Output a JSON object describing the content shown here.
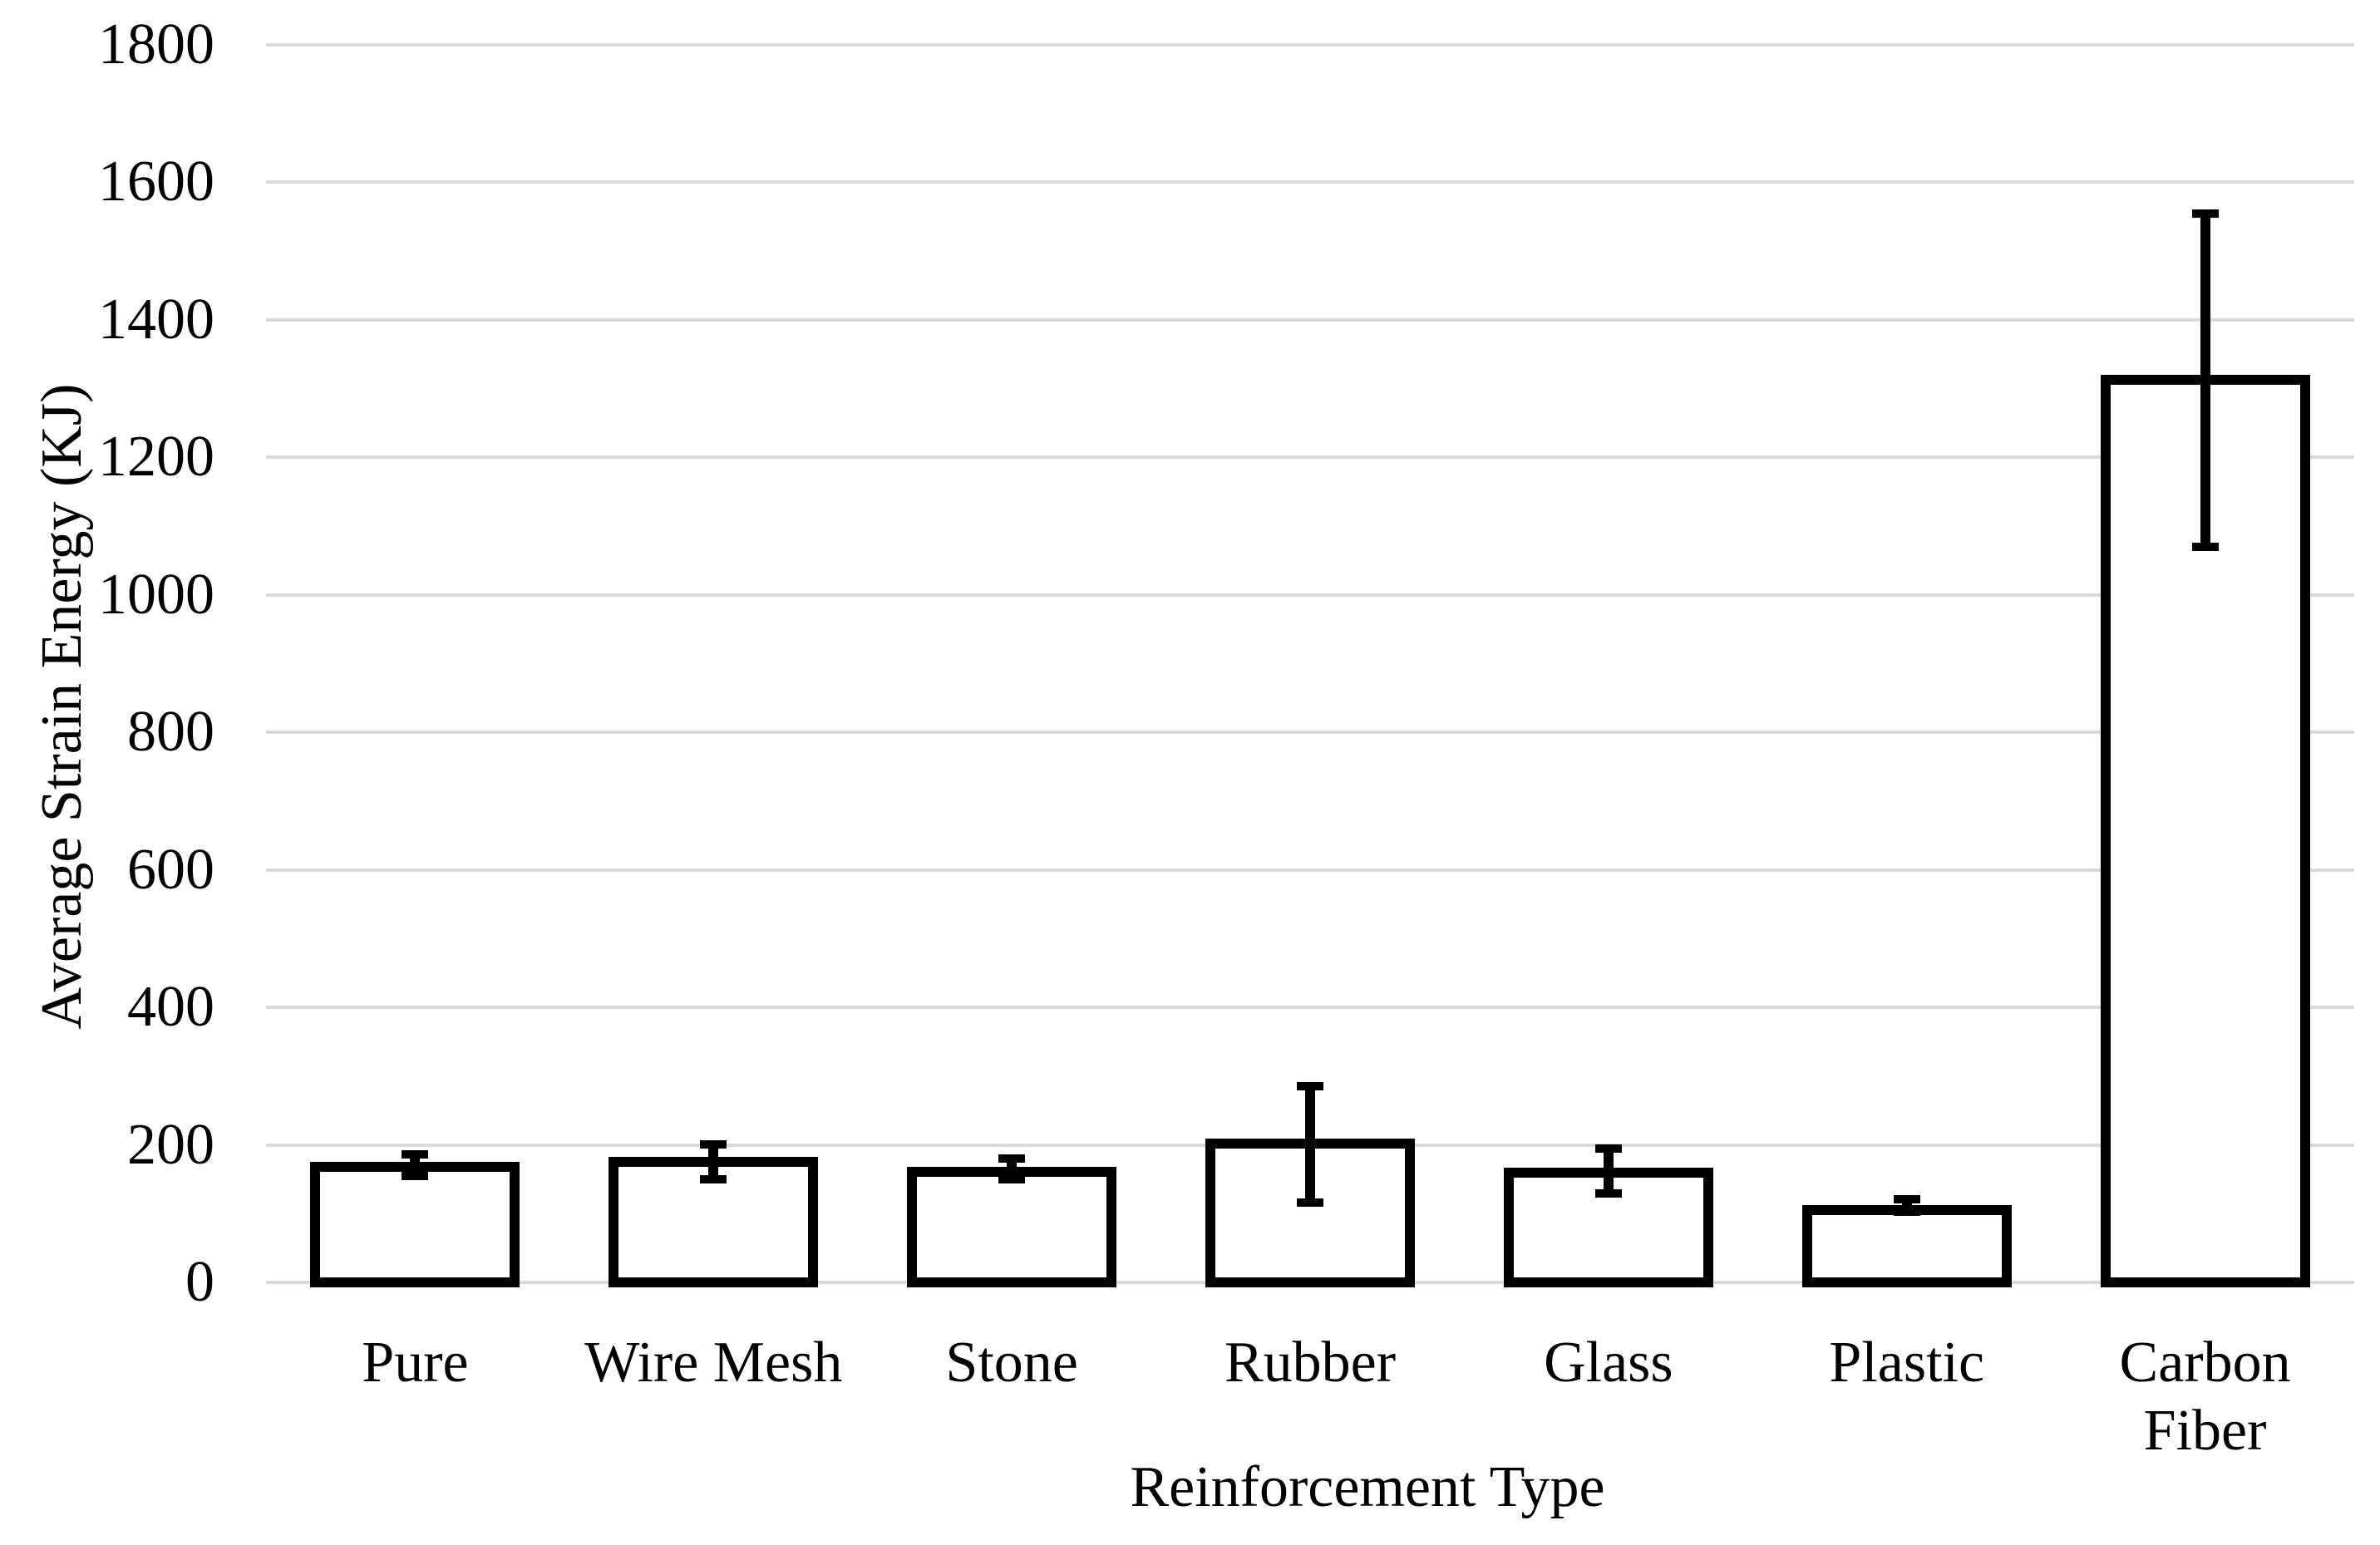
{
  "figure": {
    "background": "#ffffff"
  },
  "chart_data": {
    "type": "bar",
    "title": "",
    "xlabel": "Reinforcement Type",
    "ylabel": "Average Strain Energy (KJ)",
    "categories": [
      "Pure",
      "Wire Mesh",
      "Stone",
      "Rubber",
      "Glass",
      "Plastic",
      "Carbon Fiber"
    ],
    "values": [
      175,
      182,
      168,
      209,
      167,
      113,
      1320
    ],
    "error_low": [
      155,
      150,
      150,
      116,
      129,
      103,
      1070
    ],
    "error_high": [
      186,
      201,
      180,
      285,
      195,
      121,
      1555
    ],
    "ylim": [
      0,
      1800
    ],
    "yticks": [
      0,
      200,
      400,
      600,
      800,
      1000,
      1200,
      1400,
      1600,
      1800
    ],
    "grid": true,
    "legend": "none",
    "bar_fill": "#ffffff",
    "bar_border_color": "#000000",
    "error_color": "#000000",
    "gridline_color": "#d9d9d9",
    "text_color": "#000000"
  }
}
